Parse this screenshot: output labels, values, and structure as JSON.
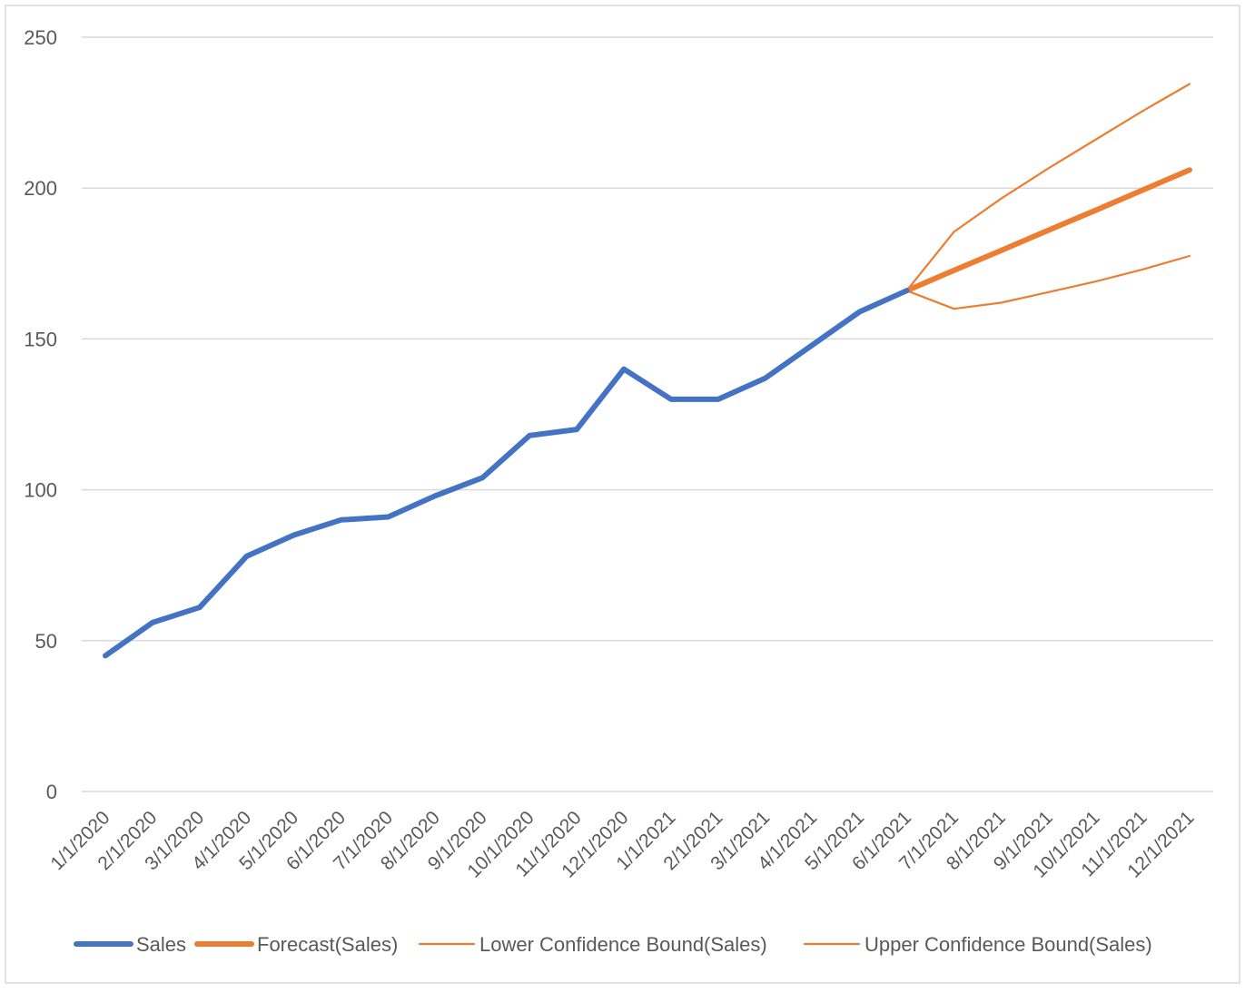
{
  "chart_data": {
    "type": "line",
    "title": "",
    "xlabel": "",
    "ylabel": "",
    "ylim": [
      0,
      250
    ],
    "yticks": [
      0,
      50,
      100,
      150,
      200,
      250
    ],
    "ytick_labels": [
      "0",
      "50",
      "100",
      "150",
      "200",
      "250"
    ],
    "grid": "horizontal",
    "legend_position": "bottom",
    "categories": [
      "1/1/2020",
      "2/1/2020",
      "3/1/2020",
      "4/1/2020",
      "5/1/2020",
      "6/1/2020",
      "7/1/2020",
      "8/1/2020",
      "9/1/2020",
      "10/1/2020",
      "11/1/2020",
      "12/1/2020",
      "1/1/2021",
      "2/1/2021",
      "3/1/2021",
      "4/1/2021",
      "5/1/2021",
      "6/1/2021",
      "7/1/2021",
      "8/1/2021",
      "9/1/2021",
      "10/1/2021",
      "11/1/2021",
      "12/1/2021"
    ],
    "series": [
      {
        "name": "Sales",
        "color": "#4472C4",
        "weight": "thick",
        "values": [
          45,
          56,
          61,
          78,
          85,
          90,
          91,
          98,
          104,
          118,
          120,
          140,
          130,
          130,
          137,
          148,
          159,
          166,
          null,
          null,
          null,
          null,
          null,
          null
        ]
      },
      {
        "name": "Forecast(Sales)",
        "color": "#ED7D31",
        "weight": "thick",
        "values": [
          null,
          null,
          null,
          null,
          null,
          null,
          null,
          null,
          null,
          null,
          null,
          null,
          null,
          null,
          null,
          null,
          null,
          166,
          172.7,
          179.3,
          186,
          192.6,
          199.3,
          206
        ]
      },
      {
        "name": "Lower Confidence Bound(Sales)",
        "color": "#ED7D31",
        "weight": "thin",
        "values": [
          null,
          null,
          null,
          null,
          null,
          null,
          null,
          null,
          null,
          null,
          null,
          null,
          null,
          null,
          null,
          null,
          null,
          166,
          160,
          162,
          165.5,
          169,
          173,
          177.5
        ]
      },
      {
        "name": "Upper Confidence Bound(Sales)",
        "color": "#ED7D31",
        "weight": "thin",
        "values": [
          null,
          null,
          null,
          null,
          null,
          null,
          null,
          null,
          null,
          null,
          null,
          null,
          null,
          null,
          null,
          null,
          null,
          166,
          185.5,
          196.5,
          206.5,
          216,
          225.5,
          234.5
        ]
      }
    ]
  }
}
